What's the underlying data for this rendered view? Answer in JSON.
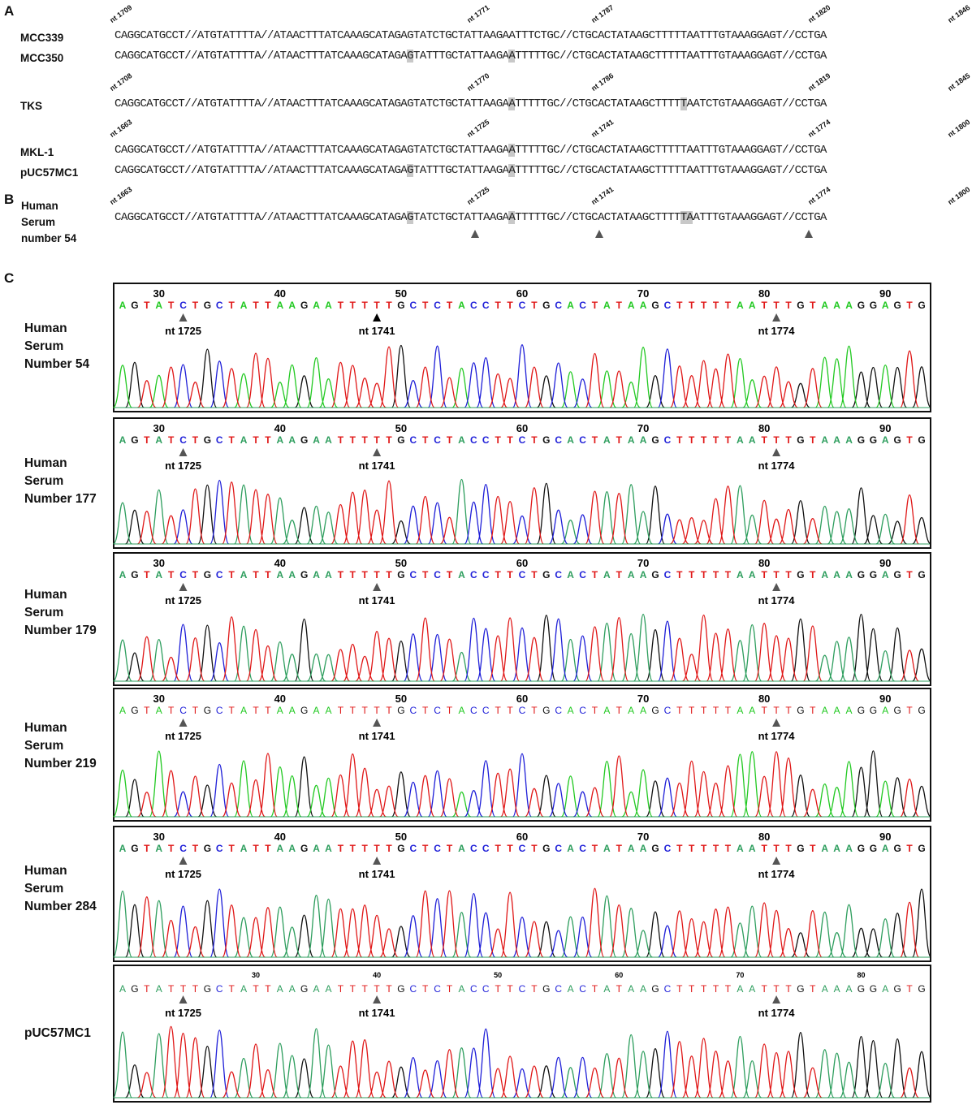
{
  "panels": {
    "a": "A",
    "b": "B",
    "c": "C"
  },
  "panel_a": {
    "rows": [
      {
        "name": "MCC339",
        "seq": "CAGGCATGCCT//ATGTATTTTA//ATAACTTTATCAAAGCATAGAGTATCTGCTATTAAGAATTTCTGC//CTGCACTATAAGCTTTTTAATTTGTAAAGGAGT//CCTGA",
        "highlights": []
      },
      {
        "name": "MCC350",
        "seq": "CAGGCATGCCT//ATGTATTTTA//ATAACTTTATCAAAGCATAGAGTATTTGCTATTAAGAATTTTTGC//CTGCACTATAAGCTTTTTAATTTGTAAAGGAGT//CCTGA",
        "highlights": [
          46,
          62
        ]
      },
      {
        "name": "TKS",
        "seq": "CAGGCATGCCT//ATGTATTTTA//ATAACTTTATCAAAGCATAGAGTATCTGCTATTAAGAATTTTTGC//CTGCACTATAAGCTTTTTAATCTGTAAAGGAGT//CCTGA",
        "highlights": [
          62,
          89
        ]
      },
      {
        "name": "MKL-1",
        "seq": "CAGGCATGCCT//ATGTATTTTA//ATAACTTTATCAAAGCATAGAGTATCTGCTATTAAGAATTTTTGC//CTGCACTATAAGCTTTTTAATTTGTAAAGGAGT//CCTGA",
        "highlights": [
          62
        ]
      },
      {
        "name": "pUC57MC1",
        "seq": "CAGGCATGCCT//ATGTATTTTA//ATAACTTTATCAAAGCATAGAGTATTTGCTATTAAGAATTTTTGC//CTGCACTATAAGCTTTTTAATTTGTAAAGGAGT//CCTGA",
        "highlights": [
          46,
          62
        ]
      }
    ],
    "positions": [
      {
        "group": 0,
        "labels": [
          {
            "i": 0,
            "t": "nt 1709"
          },
          {
            "i": 46,
            "t": "nt 1771"
          },
          {
            "i": 62,
            "t": "nt 1787"
          },
          {
            "i": 90,
            "t": "nt 1820"
          },
          {
            "i": 108,
            "t": "nt 1846"
          }
        ]
      },
      {
        "group": 2,
        "labels": [
          {
            "i": 0,
            "t": "nt 1708"
          },
          {
            "i": 46,
            "t": "nt 1770"
          },
          {
            "i": 62,
            "t": "nt 1786"
          },
          {
            "i": 90,
            "t": "nt 1819"
          },
          {
            "i": 108,
            "t": "nt 1845"
          }
        ]
      },
      {
        "group": 3,
        "labels": [
          {
            "i": 0,
            "t": "nt 1663"
          },
          {
            "i": 46,
            "t": "nt 1725"
          },
          {
            "i": 62,
            "t": "nt 1741"
          },
          {
            "i": 90,
            "t": "nt 1774"
          },
          {
            "i": 108,
            "t": "nt 1800"
          }
        ]
      }
    ]
  },
  "panel_b": {
    "name_lines": [
      "Human",
      "Serum",
      "number 54"
    ],
    "seq": "CAGGCATGCCT//ATGTATTTTA//ATAACTTTATCAAAGCATAGAGTATCTGCTATTAAGAATTTTTGC//CTGCACTATAAGCTTTTTAATTTGTAAAGGAGT//CCTGA",
    "highlights": [
      46,
      62,
      89,
      90
    ],
    "positions": [
      {
        "i": 0,
        "t": "nt 1663"
      },
      {
        "i": 46,
        "t": "nt 1725"
      },
      {
        "i": 62,
        "t": "nt 1741"
      },
      {
        "i": 90,
        "t": "nt 1774"
      },
      {
        "i": 108,
        "t": "nt 1800"
      }
    ],
    "markers": [
      46,
      62,
      89
    ]
  },
  "chart_data": [
    {
      "type": "line",
      "sample": [
        "Human",
        "Serum",
        "Number 54"
      ],
      "ticks": [
        "30",
        "40",
        "50",
        "60",
        "70",
        "80",
        "90"
      ],
      "sequence": "AGTATCTGCTATTAAGAATTTTTGCTCTACCTTCTGCACTATAAGCTTTTTAATTTGTAAAGGAGTG",
      "markers": [
        {
          "label": "nt 1725",
          "base": 5
        },
        {
          "label": "nt 1741",
          "base": 21
        },
        {
          "label": "nt 1774",
          "base": 54
        }
      ],
      "base_colors": {
        "A": "#22c922",
        "C": "#1f1fd8",
        "G": "#111111",
        "T": "#e01818"
      }
    },
    {
      "type": "line",
      "sample": [
        "Human",
        "Serum",
        "Number 177"
      ],
      "ticks": [
        "30",
        "40",
        "50",
        "60",
        "70",
        "80",
        "90"
      ],
      "sequence": "AGTATCTGCTATTAAGAATTTTTGCTCTACCTTCTGCACTATAAGCTTTTTAATTTGTAAAGGAGTG",
      "markers": [
        {
          "label": "nt 1725",
          "base": 5
        },
        {
          "label": "nt 1741",
          "base": 21
        },
        {
          "label": "nt 1774",
          "base": 54
        }
      ],
      "base_colors": {
        "A": "#2e9e5e",
        "C": "#1f1fd8",
        "G": "#111111",
        "T": "#e01818"
      }
    },
    {
      "type": "line",
      "sample": [
        "Human",
        "Serum",
        "Number 179"
      ],
      "ticks": [
        "30",
        "40",
        "50",
        "60",
        "70",
        "80",
        "90"
      ],
      "sequence": "AGTATCTGCTATTAAGAATTTTTGCTCTACCTTCTGCACTATAAGCTTTTTAATTTGTAAAGGAGTG",
      "markers": [
        {
          "label": "nt 1725",
          "base": 5
        },
        {
          "label": "nt 1741",
          "base": 21
        },
        {
          "label": "nt 1774",
          "base": 54
        }
      ],
      "base_colors": {
        "A": "#2e9e5e",
        "C": "#1f1fd8",
        "G": "#111111",
        "T": "#e01818"
      }
    },
    {
      "type": "line",
      "sample": [
        "Human",
        "Serum",
        "Number 219"
      ],
      "ticks": [
        "30",
        "40",
        "50",
        "60",
        "70",
        "80",
        "90"
      ],
      "sequence": "AGTATCTGCTATTAAGAATTTTTGCTCTACCTTCTGCACTATAAGCTTTTTAATTTGTAAAGGAGTG",
      "markers": [
        {
          "label": "nt 1725",
          "base": 5
        },
        {
          "label": "nt 1741",
          "base": 21
        },
        {
          "label": "nt 1774",
          "base": 54
        }
      ],
      "base_colors": {
        "A": "#22c922",
        "C": "#1f1fd8",
        "G": "#111111",
        "T": "#e01818"
      }
    },
    {
      "type": "line",
      "sample": [
        "Human",
        "Serum",
        "Number 284"
      ],
      "ticks": [
        "30",
        "40",
        "50",
        "60",
        "70",
        "80",
        "90"
      ],
      "sequence": "AGTATCTGCTATTAAGAATTTTTGCTCTACCTTCTGCACTATAAGCTTTTTAATTTGTAAAGGAGTG",
      "markers": [
        {
          "label": "nt 1725",
          "base": 5
        },
        {
          "label": "nt 1741",
          "base": 21
        },
        {
          "label": "nt 1774",
          "base": 54
        }
      ],
      "base_colors": {
        "A": "#2e9e5e",
        "C": "#1f1fd8",
        "G": "#111111",
        "T": "#e01818"
      }
    },
    {
      "type": "line",
      "sample": [
        "pUC57MC1"
      ],
      "ticks": [
        "30",
        "40",
        "50",
        "60",
        "70",
        "80"
      ],
      "sequence": "AGTATTTGCTATTAAGAATTTTTGCTCTACCTTCTGCACTATAAGCTTTTTAATTTGTAAAGGAGTG",
      "markers": [
        {
          "label": "nt 1725",
          "base": 5
        },
        {
          "label": "nt 1741",
          "base": 21
        },
        {
          "label": "nt 1774",
          "base": 54
        }
      ],
      "base_colors": {
        "A": "#2e9e5e",
        "C": "#1f1fd8",
        "G": "#111111",
        "T": "#e01818"
      }
    }
  ]
}
